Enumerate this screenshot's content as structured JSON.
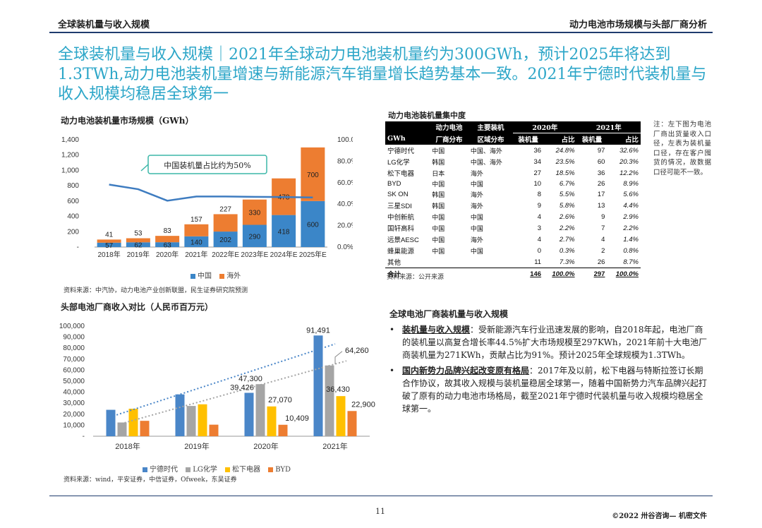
{
  "header": {
    "left": "全球装机量与收入规模",
    "right": "动力电池市场规模与头部厂商分析"
  },
  "main_title": "全球装机量与收入规模｜2021年全球动力电池装机量约为300GWh，预计2025年将达到1.3TWh,动力电池装机量增速与新能源汽车销量增长趋势基本一致。2021年宁德时代装机量与收入规模均稳居全球第一",
  "chart1": {
    "title": "动力电池装机量市场规模（GWh）",
    "callout": "中国装机量占比约为50%",
    "source": "资料来源：中汽协，动力电池产业创新联盟，民生证券研究院预测",
    "legend": [
      "中国",
      "海外"
    ]
  },
  "table": {
    "title": "动力电池装机量集中度",
    "head_top": [
      "动力电池",
      "主要装机",
      "2020年",
      "2021年"
    ],
    "head_sub": [
      "GWh",
      "厂商分布",
      "区域分布",
      "装机量",
      "占比",
      "装机量",
      "占比"
    ],
    "rows": [
      [
        "宁德时代",
        "中国",
        "中国、海外",
        "36",
        "24.8%",
        "97",
        "32.6%"
      ],
      [
        "LG化学",
        "韩国",
        "中国、海外",
        "34",
        "23.5%",
        "60",
        "20.3%"
      ],
      [
        "松下电器",
        "日本",
        "海外",
        "27",
        "18.5%",
        "36",
        "12.2%"
      ],
      [
        "BYD",
        "中国",
        "中国",
        "10",
        "6.7%",
        "26",
        "8.9%"
      ],
      [
        "SK ON",
        "韩国",
        "海外",
        "8",
        "5.5%",
        "17",
        "5.6%"
      ],
      [
        "三星SDI",
        "韩国",
        "海外",
        "9",
        "5.8%",
        "13",
        "4.4%"
      ],
      [
        "中创新航",
        "中国",
        "中国",
        "4",
        "2.6%",
        "9",
        "2.9%"
      ],
      [
        "国轩高科",
        "中国",
        "中国",
        "3",
        "2.2%",
        "7",
        "2.2%"
      ],
      [
        "远景AESC",
        "中国",
        "海外",
        "4",
        "2.7%",
        "4",
        "1.4%"
      ],
      [
        "蜂巢能源",
        "中国",
        "中国",
        "0",
        "0.3%",
        "2",
        "0.8%"
      ],
      [
        "其他",
        "",
        "",
        "11",
        "7.3%",
        "26",
        "8.7%"
      ]
    ],
    "total": [
      "合计",
      "",
      "",
      "146",
      "100.0%",
      "297",
      "100.0%"
    ],
    "source": "资料来源：公开来源"
  },
  "note": "注：左下图为电池厂商出货量收入口径，左表为装机量口径，存在客户囤货的情况，故数据口径可能不一致。",
  "chart2": {
    "title": "头部电池厂商收入对比（人民币百万元）",
    "source": "资料来源：wind，平安证券，中信证券，Ofweek，东吴证券",
    "legend": [
      "宁德时代",
      "LG化学",
      "松下电器",
      "BYD"
    ]
  },
  "summary": {
    "title": "全球电池厂商装机量与收入规模",
    "bullets": [
      {
        "key": "装机量与收入规模",
        "text": "：受新能源汽车行业迅速发展的影响，自2018年起，电池厂商的装机量以高复合增长率44.5%扩大市场规模至297KWh，2021年前十大电池厂商装机量为271KWh，贡献占比为91%。预计2025年全球规模为1.3TWh。"
      },
      {
        "key": "国内新势力品牌兴起改变原有格局",
        "text": "：2017年及以前，松下电器与特斯拉签订长期合作协议，故其收入规模与装机量稳居全球第一，随着中国新势力汽车品牌兴起打破了原有的动力电池市场格局，截至2021年宁德时代装机量与收入规模均稳居全球第一。"
      }
    ]
  },
  "footer": {
    "page": "11",
    "copyright": "©2022 卅谷咨询— 机密文件"
  },
  "chart_data": [
    {
      "type": "bar",
      "stacked": true,
      "categories": [
        "2018年",
        "2019年",
        "2020年",
        "2021年",
        "2022年E",
        "2023年E",
        "2024年E",
        "2025年E"
      ],
      "series": [
        {
          "name": "中国",
          "color": "#3b86c8",
          "values": [
            57,
            62,
            63,
            140,
            202,
            290,
            418,
            600
          ]
        },
        {
          "name": "海外",
          "color": "#ed7d31",
          "values": [
            41,
            53,
            83,
            157,
            227,
            330,
            478,
            700
          ]
        }
      ],
      "line": {
        "values": [
          0.582,
          0.539,
          0.432,
          0.471,
          0.471,
          0.468,
          0.466,
          0.462
        ]
      },
      "y_left_ticks": [
        "1,400",
        "1,200",
        "1,000",
        "800",
        "600",
        "400",
        "200",
        "-"
      ],
      "y_right_ticks": [
        "100.0%",
        "80.0%",
        "60.0%",
        "40.0%",
        "20.0%",
        "0.0%"
      ],
      "ylim": [
        0,
        1400
      ],
      "y2lim": [
        0,
        1
      ],
      "grid": false,
      "legend_position": "bottom"
    },
    {
      "type": "bar",
      "categories": [
        "2018年",
        "2019年",
        "2020年",
        "2021年"
      ],
      "series": [
        {
          "name": "宁德时代",
          "color": "#4a86c8",
          "values": [
            24000,
            38000,
            39426,
            91491
          ]
        },
        {
          "name": "LG化学",
          "color": "#a5a5a5",
          "values": [
            12500,
            27500,
            47300,
            64260
          ]
        },
        {
          "name": "松下电器",
          "color": "#ffc000",
          "values": [
            25000,
            29000,
            27070,
            36430
          ]
        },
        {
          "name": "BYD",
          "color": "#ed7d31",
          "values": [
            14000,
            10500,
            10409,
            22900
          ]
        }
      ],
      "value_labels": [
        "91,491",
        "64,260",
        "47,300",
        "39,426",
        "36,430",
        "27,070",
        "22,900",
        "10,409"
      ],
      "y_ticks": [
        "100,000",
        "90,000",
        "80,000",
        "70,000",
        "60,000",
        "50,000",
        "40,000",
        "30,000",
        "20,000",
        "10,000",
        "-"
      ],
      "ylim": [
        0,
        100000
      ],
      "trendlines": [
        "宁德时代",
        "LG化学"
      ],
      "grid": false,
      "legend_position": "bottom"
    }
  ]
}
